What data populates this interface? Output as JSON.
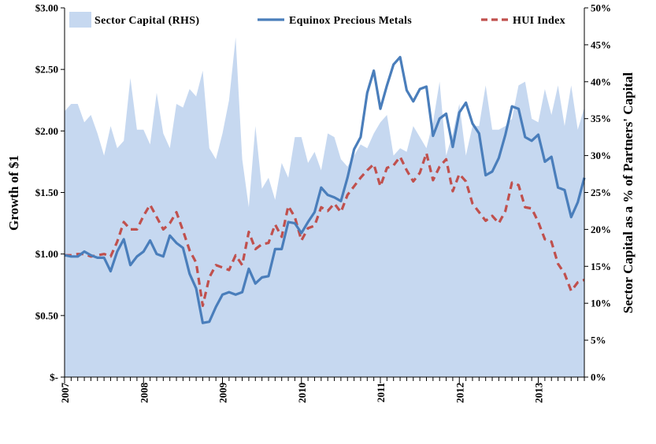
{
  "chart_data": {
    "type": "line",
    "title": "",
    "x_axis": {
      "year_labels": [
        "2007",
        "2008",
        "2009",
        "2010",
        "2011",
        "2012",
        "2013"
      ],
      "start": "2007-01",
      "end": "2013-08",
      "months": [
        "2007-01",
        "2007-02",
        "2007-03",
        "2007-04",
        "2007-05",
        "2007-06",
        "2007-07",
        "2007-08",
        "2007-09",
        "2007-10",
        "2007-11",
        "2007-12",
        "2008-01",
        "2008-02",
        "2008-03",
        "2008-04",
        "2008-05",
        "2008-06",
        "2008-07",
        "2008-08",
        "2008-09",
        "2008-10",
        "2008-11",
        "2008-12",
        "2009-01",
        "2009-02",
        "2009-03",
        "2009-04",
        "2009-05",
        "2009-06",
        "2009-07",
        "2009-08",
        "2009-09",
        "2009-10",
        "2009-11",
        "2009-12",
        "2010-01",
        "2010-02",
        "2010-03",
        "2010-04",
        "2010-05",
        "2010-06",
        "2010-07",
        "2010-08",
        "2010-09",
        "2010-10",
        "2010-11",
        "2010-12",
        "2011-01",
        "2011-02",
        "2011-03",
        "2011-04",
        "2011-05",
        "2011-06",
        "2011-07",
        "2011-08",
        "2011-09",
        "2011-10",
        "2011-11",
        "2011-12",
        "2012-01",
        "2012-02",
        "2012-03",
        "2012-04",
        "2012-05",
        "2012-06",
        "2012-07",
        "2012-08",
        "2012-09",
        "2012-10",
        "2012-11",
        "2012-12",
        "2013-01",
        "2013-02",
        "2013-03",
        "2013-04",
        "2013-05",
        "2013-06",
        "2013-07",
        "2013-08"
      ]
    },
    "y_left": {
      "label": "Growth of $1",
      "min": 0,
      "max": 3.0,
      "ticks": [
        "$-",
        "$0.50",
        "$1.00",
        "$1.50",
        "$2.00",
        "$2.50",
        "$3.00"
      ],
      "tick_values": [
        0,
        0.5,
        1.0,
        1.5,
        2.0,
        2.5,
        3.0
      ]
    },
    "y_right": {
      "label": "Sector Capital as a % of Partners' Capital",
      "min": 0,
      "max": 50,
      "ticks": [
        "0%",
        "5%",
        "10%",
        "15%",
        "20%",
        "25%",
        "30%",
        "35%",
        "40%",
        "45%",
        "50%"
      ],
      "tick_values": [
        0,
        5,
        10,
        15,
        20,
        25,
        30,
        35,
        40,
        45,
        50
      ]
    },
    "legend": {
      "position": "top"
    },
    "series": [
      {
        "name": "Sector Capital (RHS)",
        "kind": "area",
        "axis": "right",
        "color": "#c6d8f0",
        "values": [
          36,
          37,
          37,
          34.5,
          35.5,
          33,
          30,
          34,
          31,
          32,
          40.5,
          33.5,
          33.5,
          31.5,
          38.5,
          33,
          31,
          37,
          36.5,
          39,
          38,
          41.5,
          31,
          29.5,
          33,
          37.5,
          46,
          29.5,
          23,
          34,
          25.5,
          27,
          24,
          29,
          27,
          32.5,
          32.5,
          29,
          30.5,
          28,
          33,
          32.5,
          29.5,
          28.5,
          30,
          31.5,
          31,
          33,
          34.5,
          35.5,
          30,
          31,
          30.5,
          34,
          32.5,
          31,
          34.5,
          40,
          30,
          33,
          37,
          30,
          34,
          34,
          39.5,
          33.5,
          33.5,
          34,
          35,
          39.5,
          40,
          35,
          34.5,
          39,
          35.5,
          39.5,
          34,
          39.5,
          33.5,
          36.5
        ]
      },
      {
        "name": "Equinox Precious Metals",
        "kind": "line",
        "axis": "left",
        "color": "#4a7ebb",
        "values": [
          0.99,
          0.98,
          0.98,
          1.02,
          0.99,
          0.97,
          0.97,
          0.86,
          1.02,
          1.12,
          0.91,
          0.98,
          1.02,
          1.11,
          1.0,
          0.98,
          1.15,
          1.09,
          1.05,
          0.84,
          0.72,
          0.44,
          0.45,
          0.57,
          0.67,
          0.69,
          0.67,
          0.69,
          0.88,
          0.76,
          0.81,
          0.82,
          1.04,
          1.04,
          1.26,
          1.25,
          1.17,
          1.26,
          1.34,
          1.54,
          1.48,
          1.46,
          1.43,
          1.62,
          1.85,
          1.95,
          2.31,
          2.49,
          2.18,
          2.37,
          2.54,
          2.6,
          2.33,
          2.24,
          2.34,
          2.36,
          1.96,
          2.1,
          2.14,
          1.87,
          2.15,
          2.23,
          2.06,
          1.98,
          1.64,
          1.67,
          1.78,
          1.97,
          2.2,
          2.18,
          1.95,
          1.92,
          1.97,
          1.75,
          1.79,
          1.54,
          1.52,
          1.3,
          1.42,
          1.62
        ]
      },
      {
        "name": "HUI Index",
        "kind": "dashed-line",
        "axis": "left",
        "color": "#c0504d",
        "values": [
          0.99,
          0.99,
          1.0,
          1.0,
          0.98,
          0.99,
          1.0,
          0.98,
          1.1,
          1.26,
          1.2,
          1.2,
          1.31,
          1.4,
          1.3,
          1.2,
          1.25,
          1.34,
          1.19,
          1.03,
          0.93,
          0.58,
          0.81,
          0.91,
          0.89,
          0.87,
          0.99,
          0.91,
          1.18,
          1.04,
          1.08,
          1.09,
          1.24,
          1.14,
          1.39,
          1.3,
          1.11,
          1.21,
          1.23,
          1.38,
          1.35,
          1.41,
          1.34,
          1.48,
          1.55,
          1.62,
          1.68,
          1.73,
          1.55,
          1.7,
          1.72,
          1.79,
          1.68,
          1.59,
          1.66,
          1.82,
          1.6,
          1.71,
          1.77,
          1.51,
          1.65,
          1.59,
          1.41,
          1.34,
          1.27,
          1.31,
          1.25,
          1.35,
          1.58,
          1.56,
          1.38,
          1.37,
          1.26,
          1.12,
          1.1,
          0.92,
          0.84,
          0.7,
          0.77,
          0.79
        ]
      }
    ]
  }
}
